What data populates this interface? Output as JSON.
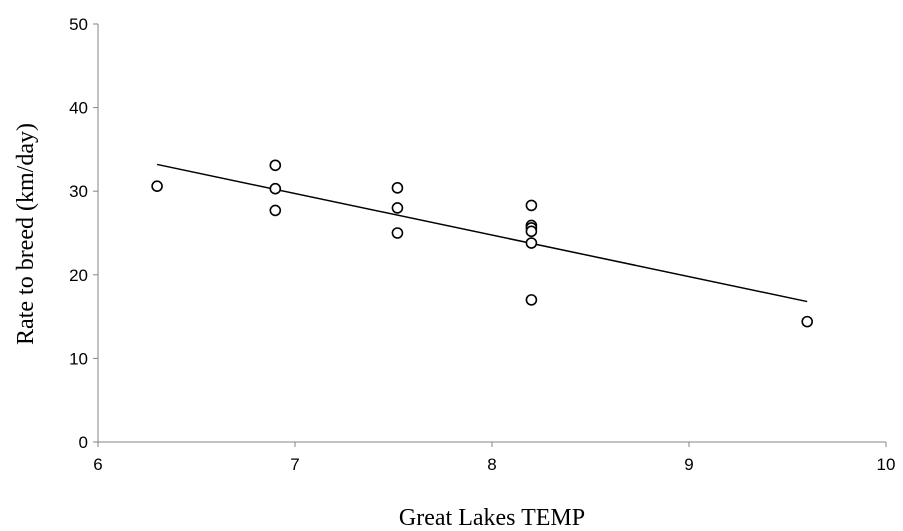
{
  "chart_data": {
    "type": "scatter",
    "title": "",
    "xlabel": "Great Lakes TEMP",
    "ylabel": "Rate to breed (km/day)",
    "xlim": [
      6,
      10
    ],
    "ylim": [
      0,
      50
    ],
    "xticks": [
      6,
      7,
      8,
      9,
      10
    ],
    "yticks": [
      0,
      10,
      20,
      30,
      40,
      50
    ],
    "grid": false,
    "legend": "none",
    "series": [
      {
        "points": [
          {
            "x": 6.3,
            "y": 30.6
          },
          {
            "x": 6.9,
            "y": 33.1
          },
          {
            "x": 6.9,
            "y": 30.3
          },
          {
            "x": 6.9,
            "y": 27.7
          },
          {
            "x": 7.52,
            "y": 30.4
          },
          {
            "x": 7.52,
            "y": 28.0
          },
          {
            "x": 7.52,
            "y": 25.0
          },
          {
            "x": 8.2,
            "y": 28.3
          },
          {
            "x": 8.2,
            "y": 25.9
          },
          {
            "x": 8.2,
            "y": 25.6
          },
          {
            "x": 8.2,
            "y": 25.2
          },
          {
            "x": 8.2,
            "y": 23.8
          },
          {
            "x": 8.2,
            "y": 17.0
          },
          {
            "x": 9.6,
            "y": 14.4
          }
        ]
      }
    ],
    "trendline": {
      "type": "linear",
      "x": [
        6.3,
        9.6
      ],
      "y": [
        33.2,
        16.8
      ]
    },
    "colors": {
      "axis": "#868686",
      "marker": "#000000",
      "trendline": "#000000"
    }
  }
}
